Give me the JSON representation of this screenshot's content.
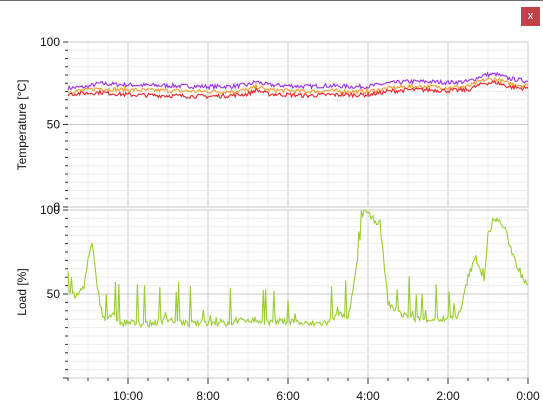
{
  "window": {
    "close_label": "x",
    "close_color": "#c4414a"
  },
  "chart_data": [
    {
      "type": "line",
      "ylabel": "Temperature [°C]",
      "ylim": [
        0,
        100
      ],
      "yticks": [
        0,
        50,
        100
      ],
      "grid": true,
      "series": [
        {
          "color": "#9b30e8",
          "points": [
            [
              11.5,
              72
            ],
            [
              11,
              73
            ],
            [
              10.7,
              75
            ],
            [
              10.5,
              74.5
            ],
            [
              10,
              74
            ],
            [
              9,
              73.5
            ],
            [
              8,
              73
            ],
            [
              7.5,
              73
            ],
            [
              7,
              74
            ],
            [
              6.8,
              76
            ],
            [
              6.5,
              74
            ],
            [
              6,
              73.5
            ],
            [
              5.5,
              73
            ],
            [
              5,
              73.5
            ],
            [
              4.5,
              73
            ],
            [
              4,
              73
            ],
            [
              3.5,
              75
            ],
            [
              3,
              76
            ],
            [
              2.5,
              76
            ],
            [
              2,
              75.5
            ],
            [
              1.5,
              76
            ],
            [
              1.1,
              80
            ],
            [
              0.8,
              80.5
            ],
            [
              0.5,
              78
            ],
            [
              0.2,
              77
            ],
            [
              0,
              76
            ]
          ]
        },
        {
          "color": "#f0a030",
          "points": [
            [
              11.5,
              70
            ],
            [
              11,
              71
            ],
            [
              10.7,
              72
            ],
            [
              10.5,
              71.5
            ],
            [
              10,
              71
            ],
            [
              9,
              70.5
            ],
            [
              8,
              70
            ],
            [
              7.5,
              70
            ],
            [
              7,
              71
            ],
            [
              6.8,
              73
            ],
            [
              6.5,
              71
            ],
            [
              6,
              70.5
            ],
            [
              5.5,
              70
            ],
            [
              5,
              70.5
            ],
            [
              4.5,
              70
            ],
            [
              4,
              70
            ],
            [
              3.5,
              72
            ],
            [
              3,
              73
            ],
            [
              2.5,
              73
            ],
            [
              2,
              72.5
            ],
            [
              1.5,
              73
            ],
            [
              1.1,
              77
            ],
            [
              0.8,
              77.5
            ],
            [
              0.5,
              75
            ],
            [
              0.2,
              74
            ],
            [
              0,
              73.5
            ]
          ]
        },
        {
          "color": "#e8242a",
          "points": [
            [
              11.5,
              68.5
            ],
            [
              11,
              69
            ],
            [
              10.7,
              69.5
            ],
            [
              10.5,
              69
            ],
            [
              10,
              68
            ],
            [
              9,
              67.5
            ],
            [
              8,
              67
            ],
            [
              7.5,
              67.5
            ],
            [
              7,
              68.5
            ],
            [
              6.8,
              71
            ],
            [
              6.5,
              68.5
            ],
            [
              6,
              68
            ],
            [
              5.5,
              67.5
            ],
            [
              5,
              68
            ],
            [
              4.5,
              68
            ],
            [
              4,
              68
            ],
            [
              3.5,
              70
            ],
            [
              3,
              71
            ],
            [
              2.5,
              71
            ],
            [
              2,
              70.5
            ],
            [
              1.5,
              71
            ],
            [
              1.1,
              75
            ],
            [
              0.8,
              75.5
            ],
            [
              0.5,
              73
            ],
            [
              0.2,
              72
            ],
            [
              0,
              72
            ]
          ]
        }
      ]
    },
    {
      "type": "line",
      "ylabel": "Load [%]",
      "ylim": [
        0,
        100
      ],
      "yticks": [
        50,
        100
      ],
      "xlabels": [
        "10:00",
        "8:00",
        "6:00",
        "4:00",
        "2:00",
        "0:00"
      ],
      "x_tick_hours": [
        10,
        8,
        6,
        4,
        2,
        0
      ],
      "xlim": [
        11.5,
        0
      ],
      "grid": true,
      "series": [
        {
          "color": "#9acd32",
          "points": [
            [
              11.5,
              52
            ],
            [
              11.3,
              48
            ],
            [
              11.1,
              55
            ],
            [
              11,
              70
            ],
            [
              10.9,
              80
            ],
            [
              10.8,
              60
            ],
            [
              10.7,
              45
            ],
            [
              10.6,
              35
            ],
            [
              10.4,
              38
            ],
            [
              10.2,
              32
            ],
            [
              10,
              33
            ],
            [
              9.5,
              32
            ],
            [
              9,
              35
            ],
            [
              8.5,
              32
            ],
            [
              8,
              33
            ],
            [
              7.5,
              32
            ],
            [
              7,
              35
            ],
            [
              6.5,
              33
            ],
            [
              6,
              34
            ],
            [
              5.5,
              32
            ],
            [
              5,
              33
            ],
            [
              4.7,
              38
            ],
            [
              4.5,
              34
            ],
            [
              4.2,
              80
            ],
            [
              4.1,
              100
            ],
            [
              3.9,
              95
            ],
            [
              3.7,
              92
            ],
            [
              3.5,
              45
            ],
            [
              3.3,
              40
            ],
            [
              3,
              36
            ],
            [
              2.5,
              35
            ],
            [
              2,
              35
            ],
            [
              1.7,
              38
            ],
            [
              1.5,
              60
            ],
            [
              1.3,
              72
            ],
            [
              1.1,
              58
            ],
            [
              1,
              85
            ],
            [
              0.8,
              95
            ],
            [
              0.6,
              90
            ],
            [
              0.4,
              75
            ],
            [
              0.2,
              62
            ],
            [
              0,
              55
            ]
          ]
        }
      ]
    }
  ]
}
